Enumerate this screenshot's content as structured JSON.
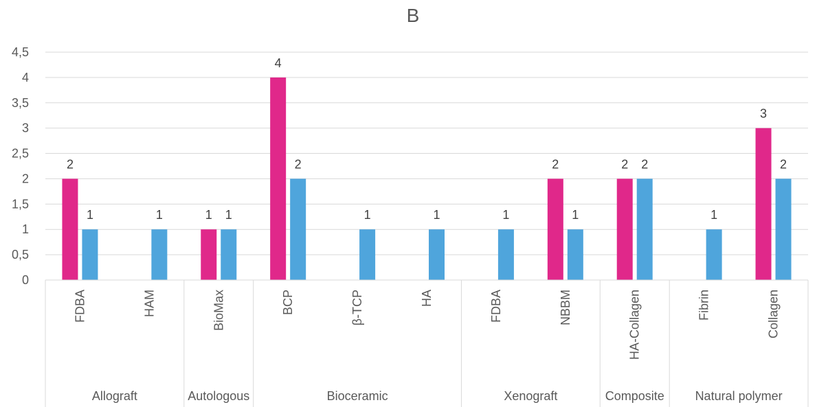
{
  "chart_data": {
    "type": "bar",
    "title": "B",
    "xlabel": "",
    "ylabel": "",
    "ylim": [
      0,
      4.5
    ],
    "yticks": [
      "0",
      "0,5",
      "1",
      "1,5",
      "2",
      "2,5",
      "3",
      "3,5",
      "4",
      "4,5"
    ],
    "grid": true,
    "legend": "none",
    "categories": [
      "FDBA",
      "HAM",
      "BioMax",
      "BCP",
      "β-TCP",
      "HA",
      "FDBA",
      "NBBM",
      "HA-Collagen",
      "Fibrin",
      "Collagen"
    ],
    "groups": [
      {
        "label": "Allograft",
        "count": 2
      },
      {
        "label": "Autologous",
        "count": 1
      },
      {
        "label": "Bioceramic",
        "count": 3
      },
      {
        "label": "Xenograft",
        "count": 2
      },
      {
        "label": "Composite",
        "count": 1
      },
      {
        "label": "Natural polymer",
        "count": 2
      }
    ],
    "series": [
      {
        "color": "#e0288a",
        "values": [
          2,
          null,
          1,
          4,
          null,
          null,
          null,
          2,
          2,
          null,
          3
        ]
      },
      {
        "color": "#4fa5dc",
        "values": [
          1,
          1,
          1,
          2,
          1,
          1,
          1,
          1,
          2,
          1,
          2
        ]
      }
    ],
    "gridline_color": "#d9d9d9"
  }
}
